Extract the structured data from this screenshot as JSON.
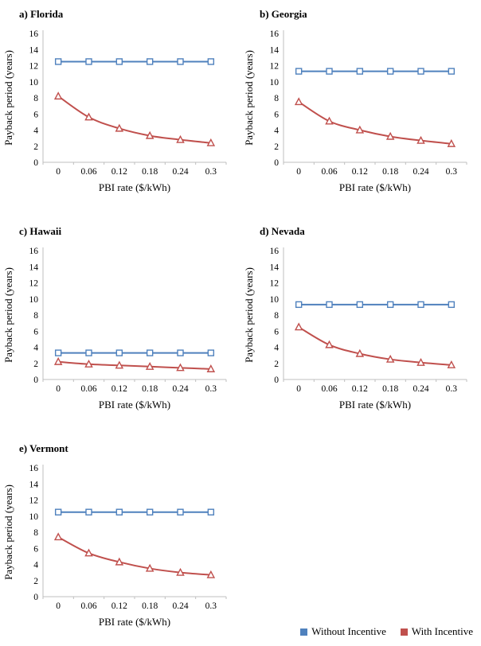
{
  "page": {
    "background": "#ffffff"
  },
  "axis": {
    "ylabel": "Payback period (years)",
    "xlabel": "PBI rate ($/kWh)",
    "ylim": [
      0,
      16
    ],
    "ytick_step": 2,
    "yticks": [
      0,
      2,
      4,
      6,
      8,
      10,
      12,
      14,
      16
    ],
    "xtick_labels": [
      "0",
      "0.06",
      "0.12",
      "0.18",
      "0.24",
      "0.3"
    ],
    "grid": false,
    "axis_line_color": "#bfbfbf"
  },
  "legend": {
    "position": "bottom-right",
    "items": [
      {
        "label": "Without Incentive",
        "color": "#4f81bd",
        "marker": "square"
      },
      {
        "label": "With Incentive",
        "color": "#c0504d",
        "marker": "triangle"
      }
    ]
  },
  "chart_data": [
    {
      "type": "line",
      "title": "a) Florida",
      "xlabel": "PBI rate ($/kWh)",
      "ylabel": "Payback period (years)",
      "ylim": [
        0,
        16
      ],
      "x": [
        0,
        0.06,
        0.12,
        0.18,
        0.24,
        0.3
      ],
      "categories": [
        "0",
        "0.06",
        "0.12",
        "0.18",
        "0.24",
        "0.3"
      ],
      "series": [
        {
          "name": "Without Incentive",
          "color": "#4f81bd",
          "marker": "square",
          "values": [
            12.5,
            12.5,
            12.5,
            12.5,
            12.5,
            12.5
          ]
        },
        {
          "name": "With Incentive",
          "color": "#c0504d",
          "marker": "triangle",
          "values": [
            8.2,
            5.6,
            4.2,
            3.3,
            2.8,
            2.4
          ]
        }
      ]
    },
    {
      "type": "line",
      "title": "b) Georgia",
      "xlabel": "PBI rate ($/kWh)",
      "ylabel": "Payback period (years)",
      "ylim": [
        0,
        16
      ],
      "x": [
        0,
        0.06,
        0.12,
        0.18,
        0.24,
        0.3
      ],
      "categories": [
        "0",
        "0.06",
        "0.12",
        "0.18",
        "0.24",
        "0.3"
      ],
      "series": [
        {
          "name": "Without Incentive",
          "color": "#4f81bd",
          "marker": "square",
          "values": [
            11.3,
            11.3,
            11.3,
            11.3,
            11.3,
            11.3
          ]
        },
        {
          "name": "With Incentive",
          "color": "#c0504d",
          "marker": "triangle",
          "values": [
            7.5,
            5.1,
            4.0,
            3.2,
            2.7,
            2.3
          ]
        }
      ]
    },
    {
      "type": "line",
      "title": "c) Hawaii",
      "xlabel": "PBI rate ($/kWh)",
      "ylabel": "Payback period (years)",
      "ylim": [
        0,
        16
      ],
      "x": [
        0,
        0.06,
        0.12,
        0.18,
        0.24,
        0.3
      ],
      "categories": [
        "0",
        "0.06",
        "0.12",
        "0.18",
        "0.24",
        "0.3"
      ],
      "series": [
        {
          "name": "Without Incentive",
          "color": "#4f81bd",
          "marker": "square",
          "values": [
            3.3,
            3.3,
            3.3,
            3.3,
            3.3,
            3.3
          ]
        },
        {
          "name": "With Incentive",
          "color": "#c0504d",
          "marker": "triangle",
          "values": [
            2.2,
            1.9,
            1.75,
            1.6,
            1.45,
            1.3
          ]
        }
      ]
    },
    {
      "type": "line",
      "title": "d) Nevada",
      "xlabel": "PBI rate ($/kWh)",
      "ylabel": "Payback period (years)",
      "ylim": [
        0,
        16
      ],
      "x": [
        0,
        0.06,
        0.12,
        0.18,
        0.24,
        0.3
      ],
      "categories": [
        "0",
        "0.06",
        "0.12",
        "0.18",
        "0.24",
        "0.3"
      ],
      "series": [
        {
          "name": "Without Incentive",
          "color": "#4f81bd",
          "marker": "square",
          "values": [
            9.3,
            9.3,
            9.3,
            9.3,
            9.3,
            9.3
          ]
        },
        {
          "name": "With Incentive",
          "color": "#c0504d",
          "marker": "triangle",
          "values": [
            6.5,
            4.3,
            3.2,
            2.5,
            2.1,
            1.8
          ]
        }
      ]
    },
    {
      "type": "line",
      "title": "e) Vermont",
      "xlabel": "PBI rate ($/kWh)",
      "ylabel": "Payback period (years)",
      "ylim": [
        0,
        16
      ],
      "x": [
        0,
        0.06,
        0.12,
        0.18,
        0.24,
        0.3
      ],
      "categories": [
        "0",
        "0.06",
        "0.12",
        "0.18",
        "0.24",
        "0.3"
      ],
      "series": [
        {
          "name": "Without Incentive",
          "color": "#4f81bd",
          "marker": "square",
          "values": [
            10.5,
            10.5,
            10.5,
            10.5,
            10.5,
            10.5
          ]
        },
        {
          "name": "With Incentive",
          "color": "#c0504d",
          "marker": "triangle",
          "values": [
            7.4,
            5.4,
            4.3,
            3.5,
            3.0,
            2.7
          ]
        }
      ]
    }
  ]
}
